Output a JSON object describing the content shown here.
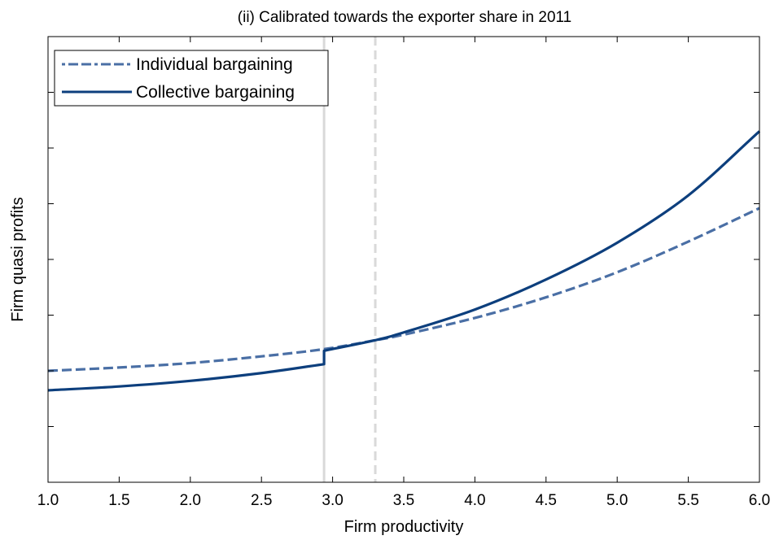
{
  "chart_data": {
    "type": "line",
    "title": "(ii) Calibrated towards the exporter share in 2011",
    "xlabel": "Firm productivity",
    "ylabel": "Firm quasi profits",
    "xlim": [
      1.0,
      6.0
    ],
    "ylim": [
      0,
      8
    ],
    "x_ticks": [
      "1.0",
      "1.5",
      "2.0",
      "2.5",
      "3.0",
      "3.5",
      "4.0",
      "4.5",
      "5.0",
      "5.5",
      "6.0"
    ],
    "x_tick_values": [
      1.0,
      1.5,
      2.0,
      2.5,
      3.0,
      3.5,
      4.0,
      4.5,
      5.0,
      5.5,
      6.0
    ],
    "y_tick_values": [
      1,
      2,
      3,
      4,
      5,
      6,
      7
    ],
    "y_tick_labels_shown": false,
    "grid": false,
    "legend_position": "top-left",
    "series": [
      {
        "name": "Individual bargaining",
        "style": "dash-dot",
        "color": "#4a6fa5",
        "x": [
          1.0,
          1.5,
          2.0,
          2.5,
          2.94,
          3.3,
          3.5,
          4.0,
          4.5,
          5.0,
          5.5,
          6.0
        ],
        "y": [
          2.0,
          2.06,
          2.14,
          2.26,
          2.39,
          2.55,
          2.65,
          2.95,
          3.32,
          3.77,
          4.32,
          4.92
        ]
      },
      {
        "name": "Collective bargaining",
        "style": "solid",
        "color": "#0d3f7d",
        "x": [
          1.0,
          1.5,
          2.0,
          2.5,
          2.94,
          2.94,
          3.3,
          3.5,
          4.0,
          4.5,
          5.0,
          5.5,
          6.0
        ],
        "y": [
          1.65,
          1.72,
          1.82,
          1.96,
          2.12,
          2.36,
          2.55,
          2.69,
          3.1,
          3.64,
          4.3,
          5.15,
          6.3
        ]
      }
    ],
    "vertical_lines": [
      {
        "x": 2.94,
        "style": "solid",
        "color": "#d9d9d9"
      },
      {
        "x": 3.3,
        "style": "dashed",
        "color": "#d9d9d9"
      }
    ]
  }
}
